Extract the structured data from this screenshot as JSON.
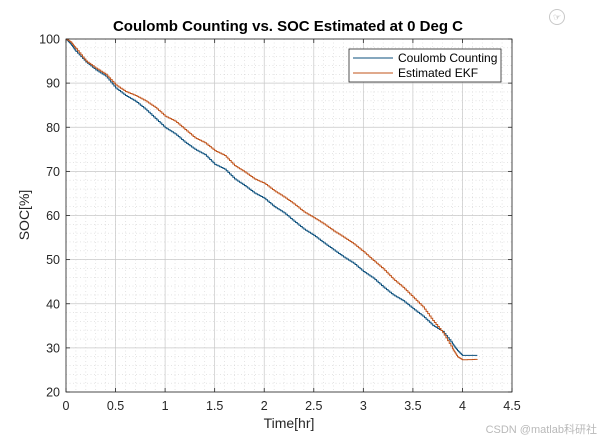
{
  "chart_data": {
    "type": "line",
    "title": "Coulomb Counting vs. SOC Estimated at 0 Deg C",
    "xlabel": "Time[hr]",
    "ylabel": "SOC[%]",
    "xlim": [
      0,
      4.5
    ],
    "ylim": [
      20,
      100
    ],
    "xticks": [
      "0",
      "0.5",
      "1",
      "1.5",
      "2",
      "2.5",
      "3",
      "3.5",
      "4",
      "4.5"
    ],
    "yticks": [
      "20",
      "30",
      "40",
      "50",
      "60",
      "70",
      "80",
      "90",
      "100"
    ],
    "grid": true,
    "minor_grid": true,
    "legend_position": "top-right",
    "colors": {
      "coulomb": "#0b4f7c",
      "ekf": "#c0531a"
    },
    "series": [
      {
        "name": "Coulomb Counting",
        "x": [
          0,
          0.05,
          0.1,
          0.2,
          0.3,
          0.4,
          0.5,
          0.6,
          0.7,
          0.8,
          0.9,
          1.0,
          1.1,
          1.2,
          1.3,
          1.4,
          1.5,
          1.6,
          1.7,
          1.8,
          1.9,
          2.0,
          2.1,
          2.2,
          2.3,
          2.4,
          2.5,
          2.6,
          2.7,
          2.8,
          2.9,
          3.0,
          3.1,
          3.2,
          3.3,
          3.4,
          3.5,
          3.6,
          3.7,
          3.8,
          3.9,
          3.95,
          4.0,
          4.15
        ],
        "y": [
          100,
          98.8,
          97.2,
          94.8,
          93.0,
          91.6,
          88.9,
          87.2,
          85.9,
          84.1,
          82.0,
          79.9,
          78.5,
          76.6,
          75.0,
          73.8,
          71.6,
          70.5,
          68.3,
          66.8,
          65.1,
          63.9,
          62.0,
          60.6,
          58.7,
          56.9,
          55.5,
          53.8,
          52.2,
          50.6,
          49.2,
          47.3,
          45.8,
          43.8,
          42.0,
          40.7,
          38.9,
          37.2,
          35.1,
          33.7,
          30.9,
          29.4,
          28.3,
          28.3
        ]
      },
      {
        "name": "Estimated EKF",
        "x": [
          0,
          0.05,
          0.1,
          0.2,
          0.3,
          0.4,
          0.5,
          0.6,
          0.7,
          0.8,
          0.9,
          1.0,
          1.1,
          1.2,
          1.3,
          1.4,
          1.5,
          1.6,
          1.7,
          1.8,
          1.9,
          2.0,
          2.1,
          2.2,
          2.3,
          2.4,
          2.5,
          2.6,
          2.7,
          2.8,
          2.9,
          3.0,
          3.1,
          3.2,
          3.3,
          3.4,
          3.5,
          3.6,
          3.7,
          3.8,
          3.9,
          3.95,
          4.0,
          4.15
        ],
        "y": [
          100,
          99.3,
          97.8,
          95.0,
          93.4,
          92.0,
          89.6,
          88.1,
          87.2,
          86.0,
          84.5,
          82.5,
          81.4,
          79.5,
          77.6,
          76.5,
          74.7,
          73.6,
          71.3,
          69.9,
          68.3,
          67.3,
          65.6,
          64.2,
          62.6,
          60.8,
          59.5,
          58.1,
          56.5,
          55.1,
          53.6,
          51.8,
          49.8,
          47.9,
          45.6,
          43.7,
          41.5,
          39.3,
          36.2,
          33.5,
          29.8,
          28.0,
          27.3,
          27.4
        ]
      }
    ]
  },
  "watermark": "CSDN @matlab科研社",
  "icons": {
    "corner": "hand-pointer-icon"
  }
}
